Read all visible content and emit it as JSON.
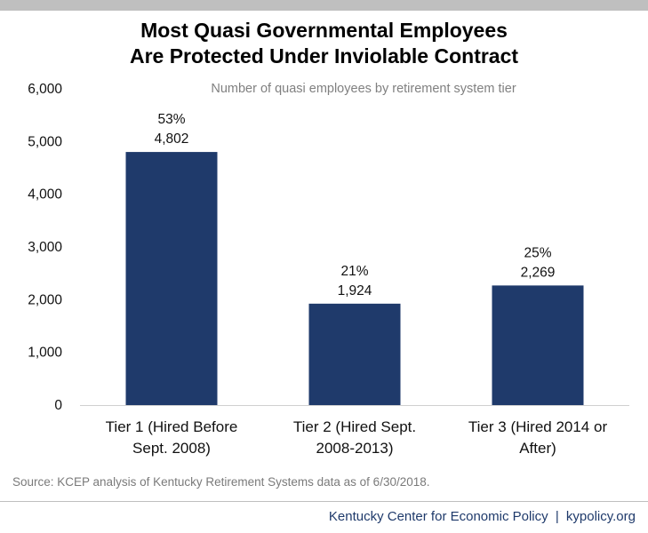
{
  "chart_data": {
    "type": "bar",
    "title": [
      "Most Quasi Governmental Employees",
      "Are Protected Under Inviolable Contract"
    ],
    "subtitle": "Number of quasi employees by retirement system tier",
    "categories": [
      [
        "Tier 1 (Hired Before",
        "Sept. 2008)"
      ],
      [
        "Tier 2 (Hired Sept.",
        "2008-2013)"
      ],
      [
        "Tier 3 (Hired 2014 or",
        "After)"
      ]
    ],
    "values": [
      4802,
      1924,
      2269
    ],
    "percent_labels": [
      "53%",
      "21%",
      "25%"
    ],
    "value_labels": [
      "4,802",
      "1,924",
      "2,269"
    ],
    "ylim": [
      0,
      6000
    ],
    "yticks": [
      0,
      1000,
      2000,
      3000,
      4000,
      5000,
      6000
    ],
    "ytick_labels": [
      "0",
      "1,000",
      "2,000",
      "3,000",
      "4,000",
      "5,000",
      "6,000"
    ],
    "bar_color": "#1f3a6b",
    "grid": false
  },
  "source": "Source: KCEP analysis of Kentucky Retirement Systems data as of 6/30/2018.",
  "footer": {
    "org": "Kentucky Center for Economic Policy",
    "separator": "|",
    "site": "kypolicy.org",
    "color": "#1f3a6b"
  }
}
